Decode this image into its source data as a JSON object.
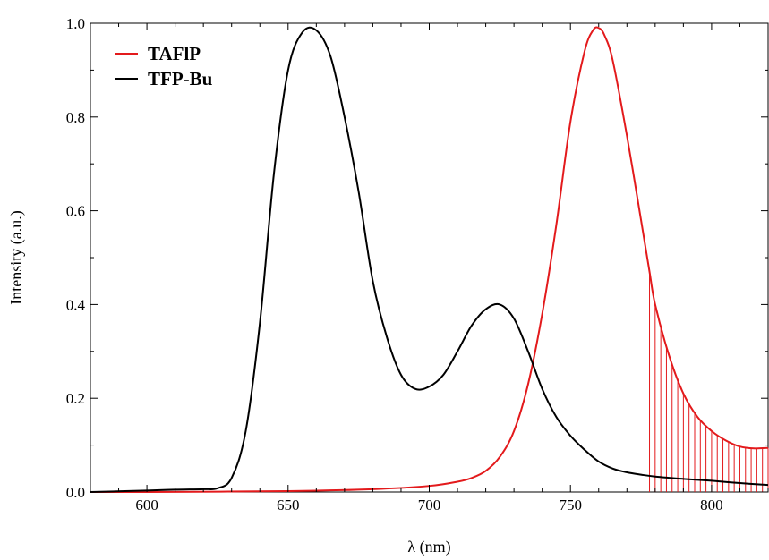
{
  "chart_data": {
    "type": "line",
    "xlabel": "λ (nm)",
    "ylabel": "Intensity (a.u.)",
    "xlim": [
      580,
      820
    ],
    "ylim": [
      0,
      1.0
    ],
    "x_ticks": [
      600,
      650,
      700,
      750,
      800
    ],
    "y_ticks": [
      0.0,
      0.2,
      0.4,
      0.6,
      0.8,
      1.0
    ],
    "x_tick_labels": [
      "600",
      "650",
      "700",
      "750",
      "800"
    ],
    "y_tick_labels": [
      "0.0",
      "0.2",
      "0.4",
      "0.6",
      "0.8",
      "1.0"
    ],
    "legend_position": "top-left",
    "grid": false,
    "series": [
      {
        "name": "TAFlP",
        "color": "#e31a1c",
        "x": [
          580,
          600,
          650,
          680,
          700,
          710,
          715,
          720,
          725,
          730,
          735,
          740,
          745,
          750,
          755,
          758,
          760,
          762,
          765,
          770,
          775,
          778,
          780,
          785,
          790,
          795,
          800,
          805,
          810,
          815,
          820
        ],
        "y": [
          0.0,
          0.0,
          0.002,
          0.006,
          0.013,
          0.022,
          0.03,
          0.045,
          0.075,
          0.13,
          0.23,
          0.38,
          0.57,
          0.79,
          0.94,
          0.985,
          0.99,
          0.975,
          0.92,
          0.76,
          0.58,
          0.47,
          0.4,
          0.29,
          0.21,
          0.16,
          0.13,
          0.11,
          0.097,
          0.093,
          0.094
        ]
      },
      {
        "name": "TFP-Bu",
        "color": "#000000",
        "x": [
          580,
          600,
          610,
          620,
          625,
          630,
          635,
          640,
          645,
          650,
          655,
          660,
          665,
          670,
          675,
          680,
          685,
          690,
          695,
          700,
          705,
          710,
          715,
          720,
          725,
          730,
          735,
          740,
          745,
          750,
          755,
          760,
          765,
          770,
          775,
          780,
          790,
          800,
          810,
          820
        ],
        "y": [
          0.0,
          0.003,
          0.005,
          0.006,
          0.008,
          0.03,
          0.13,
          0.36,
          0.68,
          0.9,
          0.98,
          0.985,
          0.93,
          0.8,
          0.64,
          0.45,
          0.33,
          0.25,
          0.22,
          0.225,
          0.25,
          0.3,
          0.355,
          0.39,
          0.4,
          0.37,
          0.3,
          0.22,
          0.16,
          0.12,
          0.09,
          0.065,
          0.05,
          0.042,
          0.037,
          0.033,
          0.028,
          0.024,
          0.019,
          0.015
        ]
      }
    ],
    "hatch": {
      "series": "TAFlP",
      "x_from": 778,
      "x_to": 820,
      "step": 2,
      "color": "#e31a1c"
    }
  }
}
